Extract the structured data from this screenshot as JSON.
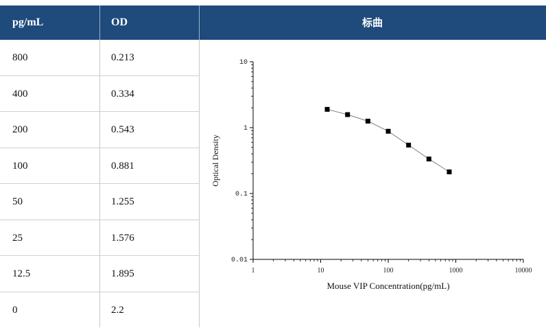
{
  "header": {
    "col1": "pg/mL",
    "col2": "OD",
    "col3": "标曲"
  },
  "rows": [
    {
      "conc": "800",
      "od": "0.213"
    },
    {
      "conc": "400",
      "od": "0.334"
    },
    {
      "conc": "200",
      "od": "0.543"
    },
    {
      "conc": "100",
      "od": "0.881"
    },
    {
      "conc": "50",
      "od": "1.255"
    },
    {
      "conc": "25",
      "od": "1.576"
    },
    {
      "conc": "12.5",
      "od": "1.895"
    },
    {
      "conc": "0",
      "od": "2.2"
    }
  ],
  "chart_data": {
    "type": "scatter",
    "xlabel": "Mouse VIP Concentration(pg/mL)",
    "ylabel": "Optical Density",
    "xscale": "log",
    "yscale": "log",
    "xlim": [
      1,
      10000
    ],
    "ylim": [
      0.01,
      10
    ],
    "x_ticks": [
      "1",
      "10",
      "100",
      "1000",
      "10000"
    ],
    "y_ticks": [
      "0.01",
      "0.1",
      "1",
      "10"
    ],
    "grid": false,
    "legend": "none",
    "x": [
      12.5,
      25,
      50,
      100,
      200,
      400,
      800
    ],
    "y": [
      1.895,
      1.576,
      1.255,
      0.881,
      0.543,
      0.334,
      0.213
    ],
    "marker_color": "#000000",
    "line_color": "#7f7f7f"
  },
  "colors": {
    "header_bg": "#1e4a7c",
    "header_text": "#ffffff"
  }
}
